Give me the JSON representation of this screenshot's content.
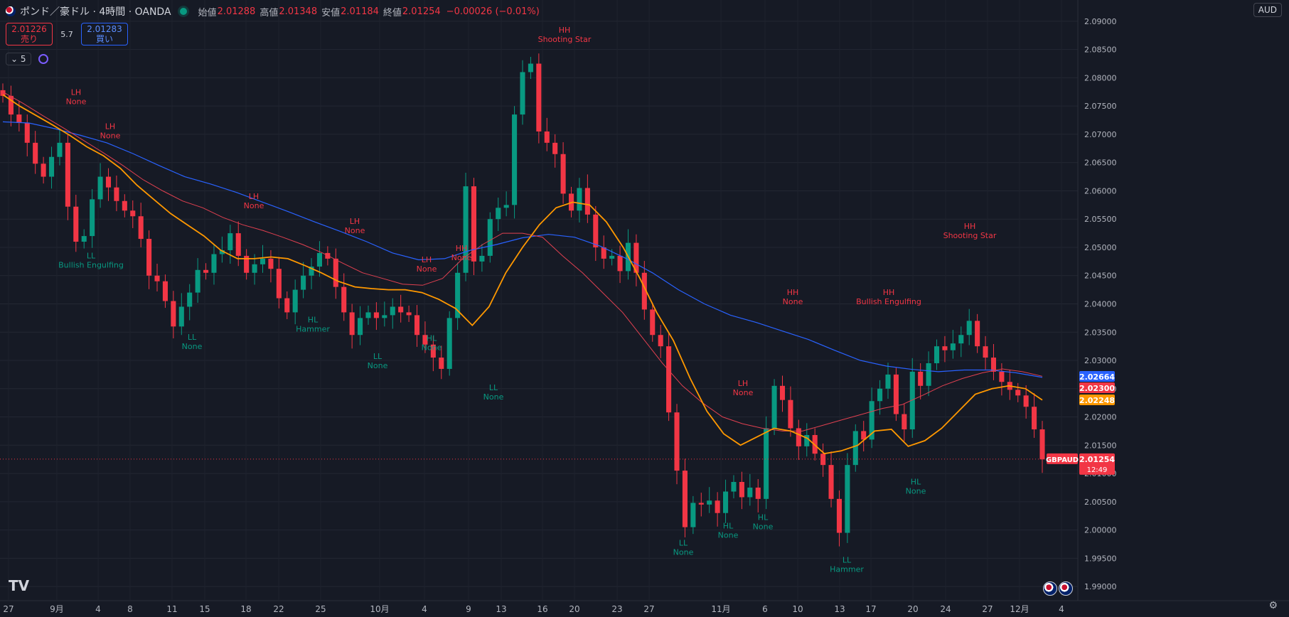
{
  "header": {
    "symbol_title": "ポンド／豪ドル · 4時間 · OANDA",
    "open_label": "始値",
    "open_value": "2.01288",
    "high_label": "高値",
    "high_value": "2.01348",
    "low_label": "安値",
    "low_value": "2.01184",
    "close_label": "終値",
    "close_value": "2.01254",
    "change": "−0.00026 (−0.01%)"
  },
  "trade": {
    "sell_price": "2.01226",
    "sell_label": "売り",
    "spread": "5.7",
    "buy_price": "2.01283",
    "buy_label": "買い"
  },
  "indicators": {
    "count": "5"
  },
  "currency_button": "AUD",
  "colors": {
    "background": "#161a25",
    "up": "#089981",
    "down": "#f23645",
    "ma_fast": "#ff9800",
    "ma_mid": "#e04050",
    "ma_slow": "#2962ff",
    "label_high": "#f23645",
    "label_low": "#089981"
  },
  "chart_data": {
    "type": "candlestick",
    "symbol": "GBPAUD",
    "timeframe": "4時間",
    "ylim": [
      1.9875,
      2.0925
    ],
    "y_ticks": [
      "2.09000",
      "2.08500",
      "2.08000",
      "2.07500",
      "2.07000",
      "2.06500",
      "2.06000",
      "2.05500",
      "2.05000",
      "2.04500",
      "2.04000",
      "2.03500",
      "2.03000",
      "2.02500",
      "2.02000",
      "2.01500",
      "2.01000",
      "2.00500",
      "2.00000",
      "1.99500",
      "1.99000"
    ],
    "x_ticks": [
      "27",
      "9月",
      "4",
      "8",
      "11",
      "15",
      "18",
      "22",
      "25",
      "10月",
      "4",
      "9",
      "13",
      "16",
      "20",
      "23",
      "27",
      "11月",
      "6",
      "10",
      "13",
      "17",
      "20",
      "24",
      "27",
      "12月",
      "4"
    ],
    "price_badges": [
      {
        "name": "ma-slow",
        "value": "2.02664",
        "color": "#2962ff"
      },
      {
        "name": "ma-mid",
        "value": "2.02300",
        "color": "#f23645"
      },
      {
        "name": "ma-fast",
        "value": "2.02248",
        "color": "#ff9800"
      },
      {
        "name": "last-price",
        "value": "2.01254",
        "sub": "12:49",
        "color": "#f23645",
        "tag": "GBPAUD"
      }
    ],
    "swing_labels": [
      {
        "lines": [
          "LH",
          "None"
        ],
        "kind": "high",
        "x": 107,
        "price": 2.0752
      },
      {
        "lines": [
          "LH",
          "None"
        ],
        "kind": "high",
        "x": 155,
        "price": 2.0692
      },
      {
        "lines": [
          "LL",
          "Bullish Engulfing"
        ],
        "kind": "low",
        "x": 128,
        "price": 2.0488
      },
      {
        "lines": [
          "LL",
          "None"
        ],
        "kind": "low",
        "x": 270,
        "price": 2.0344
      },
      {
        "lines": [
          "LH",
          "None"
        ],
        "kind": "high",
        "x": 357,
        "price": 2.0568
      },
      {
        "lines": [
          "HL",
          "Hammer"
        ],
        "kind": "low",
        "x": 440,
        "price": 2.0375
      },
      {
        "lines": [
          "LH",
          "None"
        ],
        "kind": "high",
        "x": 499,
        "price": 2.0524
      },
      {
        "lines": [
          "LL",
          "None"
        ],
        "kind": "low",
        "x": 531,
        "price": 2.031
      },
      {
        "lines": [
          "HL",
          "None"
        ],
        "kind": "low",
        "x": 607,
        "price": 2.0342
      },
      {
        "lines": [
          "LH",
          "None"
        ],
        "kind": "high",
        "x": 600,
        "price": 2.0456
      },
      {
        "lines": [
          "HH",
          "None"
        ],
        "kind": "high",
        "x": 649,
        "price": 2.0476
      },
      {
        "lines": [
          "LL",
          "None"
        ],
        "kind": "low",
        "x": 694,
        "price": 2.0255
      },
      {
        "lines": [
          "HH",
          "Shooting Star"
        ],
        "kind": "high",
        "x": 794,
        "price": 2.0862
      },
      {
        "lines": [
          "LL",
          "None"
        ],
        "kind": "low",
        "x": 961,
        "price": 1.998
      },
      {
        "lines": [
          "HL",
          "None"
        ],
        "kind": "low",
        "x": 1024,
        "price": 2.001
      },
      {
        "lines": [
          "LH",
          "None"
        ],
        "kind": "high",
        "x": 1045,
        "price": 2.0237
      },
      {
        "lines": [
          "HL",
          "None"
        ],
        "kind": "low",
        "x": 1073,
        "price": 2.0025
      },
      {
        "lines": [
          "HH",
          "None"
        ],
        "kind": "high",
        "x": 1115,
        "price": 2.0398
      },
      {
        "lines": [
          "LL",
          "Hammer"
        ],
        "kind": "low",
        "x": 1191,
        "price": 1.995
      },
      {
        "lines": [
          "HH",
          "Bullish Engulfing"
        ],
        "kind": "high",
        "x": 1250,
        "price": 2.0398
      },
      {
        "lines": [
          "HL",
          "None"
        ],
        "kind": "low",
        "x": 1288,
        "price": 2.0088
      },
      {
        "lines": [
          "HH",
          "Shooting Star"
        ],
        "kind": "high",
        "x": 1364,
        "price": 2.0515
      }
    ],
    "series": [
      {
        "name": "close",
        "values": [
          2.0768,
          2.0735,
          2.072,
          2.0685,
          2.0648,
          2.0625,
          2.066,
          2.0685,
          2.0572,
          2.051,
          2.052,
          2.0585,
          2.0625,
          2.0606,
          2.0582,
          2.0565,
          2.0555,
          2.0515,
          2.045,
          2.044,
          2.0405,
          2.036,
          2.0395,
          2.042,
          2.046,
          2.0455,
          2.0488,
          2.0495,
          2.0525,
          2.0485,
          2.0455,
          2.047,
          2.048,
          2.0462,
          2.041,
          2.0385,
          2.0425,
          2.045,
          2.0466,
          2.049,
          2.048,
          2.043,
          2.0385,
          2.0345,
          2.0375,
          2.0385,
          2.0375,
          2.038,
          2.0395,
          2.0385,
          2.038,
          2.0345,
          2.0328,
          2.0305,
          2.0285,
          2.0375,
          2.0455,
          2.0608,
          2.0475,
          2.0485,
          2.055,
          2.057,
          2.0575,
          2.0735,
          2.081,
          2.0825,
          2.0705,
          2.0685,
          2.0665,
          2.0595,
          2.0565,
          2.0605,
          2.0558,
          2.05,
          2.048,
          2.0485,
          2.0458,
          2.0508,
          2.0455,
          2.039,
          2.0345,
          2.0325,
          2.0208,
          2.0105,
          2.0005,
          2.0048,
          2.0045,
          2.0052,
          2.003,
          2.0068,
          2.0085,
          2.0058,
          2.0075,
          2.0055,
          2.018,
          2.0255,
          2.023,
          2.018,
          2.0148,
          2.0168,
          2.0135,
          2.0115,
          2.0055,
          1.9995,
          2.0115,
          2.0175,
          2.016,
          2.0228,
          2.025,
          2.0275,
          2.0205,
          2.0178,
          2.028,
          2.0255,
          2.0295,
          2.0325,
          2.0318,
          2.033,
          2.0345,
          2.037,
          2.0325,
          2.0305,
          2.028,
          2.0262,
          2.0248,
          2.0238,
          2.0218,
          2.0178,
          2.0125
        ]
      },
      {
        "name": "ma-fast-line",
        "values": [
          2.077,
          2.075,
          2.0733,
          2.0716,
          2.0698,
          2.0678,
          2.0662,
          2.064,
          2.061,
          2.0585,
          2.056,
          2.054,
          2.052,
          2.0495,
          2.048,
          2.048,
          2.0483,
          2.048,
          2.0468,
          2.0455,
          2.044,
          2.043,
          2.0427,
          2.0425,
          2.0425,
          2.042,
          2.0408,
          2.0392,
          2.0362,
          2.0395,
          2.0455,
          2.05,
          2.054,
          2.057,
          2.058,
          2.0575,
          2.0545,
          2.05,
          2.0445,
          2.0385,
          2.0335,
          2.0268,
          2.021,
          2.017,
          2.015,
          2.0165,
          2.018,
          2.0175,
          2.0162,
          2.0135,
          2.014,
          2.015,
          2.0175,
          2.0178,
          2.0148,
          2.0158,
          2.018,
          2.021,
          2.024,
          2.025,
          2.0255,
          2.025,
          2.023
        ]
      },
      {
        "name": "ma-mid-line",
        "values": [
          2.0775,
          2.0755,
          2.0733,
          2.0712,
          2.069,
          2.0668,
          2.0645,
          2.062,
          2.06,
          2.0582,
          2.057,
          2.0553,
          2.054,
          2.053,
          2.0518,
          2.0505,
          2.049,
          2.0472,
          2.0455,
          2.0445,
          2.0435,
          2.0433,
          2.0445,
          2.048,
          2.0505,
          2.0525,
          2.0525,
          2.0518,
          2.0485,
          2.0455,
          2.042,
          2.0385,
          2.034,
          2.0295,
          2.0255,
          2.0225,
          2.02,
          2.0188,
          2.018,
          2.0175,
          2.0175,
          2.0185,
          2.0195,
          2.0205,
          2.0215,
          2.0222,
          2.0238,
          2.0255,
          2.0268,
          2.0278,
          2.0285,
          2.028,
          2.0272
        ]
      },
      {
        "name": "ma-slow-line",
        "values": [
          2.0722,
          2.072,
          2.071,
          2.0698,
          2.0685,
          2.0666,
          2.0645,
          2.0625,
          2.0612,
          2.0597,
          2.058,
          2.0563,
          2.0545,
          2.0528,
          2.051,
          2.049,
          2.0478,
          2.048,
          2.0495,
          2.0505,
          2.0517,
          2.0523,
          2.0518,
          2.0502,
          2.048,
          2.0455,
          2.0425,
          2.04,
          2.038,
          2.0367,
          2.0352,
          2.0337,
          2.0318,
          2.03,
          2.029,
          2.0284,
          2.028,
          2.0283,
          2.0283,
          2.0278,
          2.027
        ]
      }
    ]
  }
}
